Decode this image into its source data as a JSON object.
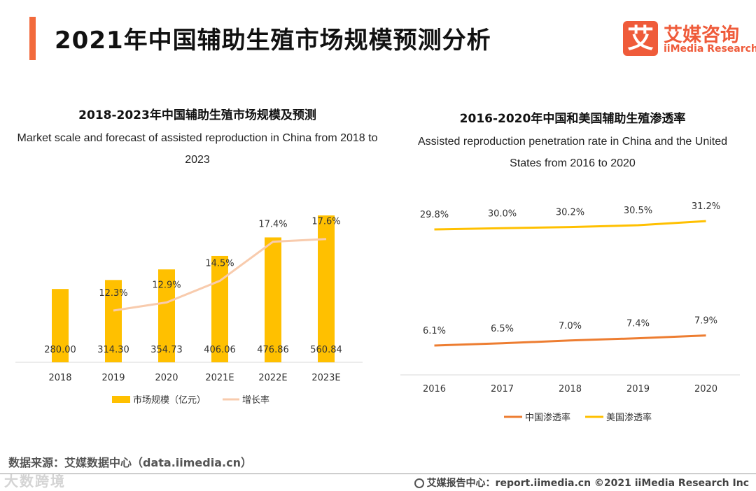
{
  "page": {
    "title": "2021年中国辅助生殖市场规模预测分析",
    "source": "数据来源：艾媒数据中心（data.iimedia.cn）",
    "watermark": "大数跨境",
    "footer": "艾媒报告中心：report.iimedia.cn   ©2021  iiMedia Research  Inc"
  },
  "logo": {
    "mark": "艾",
    "cn": "艾媒咨询",
    "en": "iiMedia Research"
  },
  "chart_left": {
    "title": "2018-2023年中国辅助生殖市场规模及预测",
    "subtitle": "Market scale and forecast of assisted reproduction in China from 2018 to 2023"
  },
  "chart_right": {
    "title": "2016-2020年中国和美国辅助生殖渗透率",
    "subtitle": "Assisted reproduction penetration rate in China and the United States from 2016 to 2020"
  },
  "colors": {
    "bar": "#ffc000",
    "growth_line": "#f8cbad",
    "china_line": "#ed7d31",
    "us_line": "#ffc000",
    "accent": "#f26a3c"
  },
  "chart_data": [
    {
      "type": "bar",
      "categories": [
        "2018",
        "2019",
        "2020",
        "2021E",
        "2022E",
        "2023E"
      ],
      "series": [
        {
          "name": "市场规模（亿元）",
          "type": "bar",
          "values": [
            280.0,
            314.3,
            354.73,
            406.06,
            476.86,
            560.84
          ],
          "labels": [
            "280.00",
            "314.30",
            "354.73",
            "406.06",
            "476.86",
            "560.84"
          ]
        },
        {
          "name": "增长率",
          "type": "line",
          "values": [
            null,
            12.3,
            12.9,
            14.5,
            17.4,
            17.6
          ],
          "labels": [
            "",
            "12.3%",
            "12.9%",
            "14.5%",
            "17.4%",
            "17.6%"
          ]
        }
      ],
      "legend": "bottom"
    },
    {
      "type": "line",
      "categories": [
        "2016",
        "2017",
        "2018",
        "2019",
        "2020"
      ],
      "series": [
        {
          "name": "中国渗透率",
          "values": [
            6.1,
            6.5,
            7.0,
            7.4,
            7.9
          ],
          "labels": [
            "6.1%",
            "6.5%",
            "7.0%",
            "7.4%",
            "7.9%"
          ]
        },
        {
          "name": "美国渗透率",
          "values": [
            29.8,
            30.0,
            30.2,
            30.5,
            31.2
          ],
          "labels": [
            "29.8%",
            "30.0%",
            "30.2%",
            "30.5%",
            "31.2%"
          ]
        }
      ],
      "legend": "bottom"
    }
  ]
}
